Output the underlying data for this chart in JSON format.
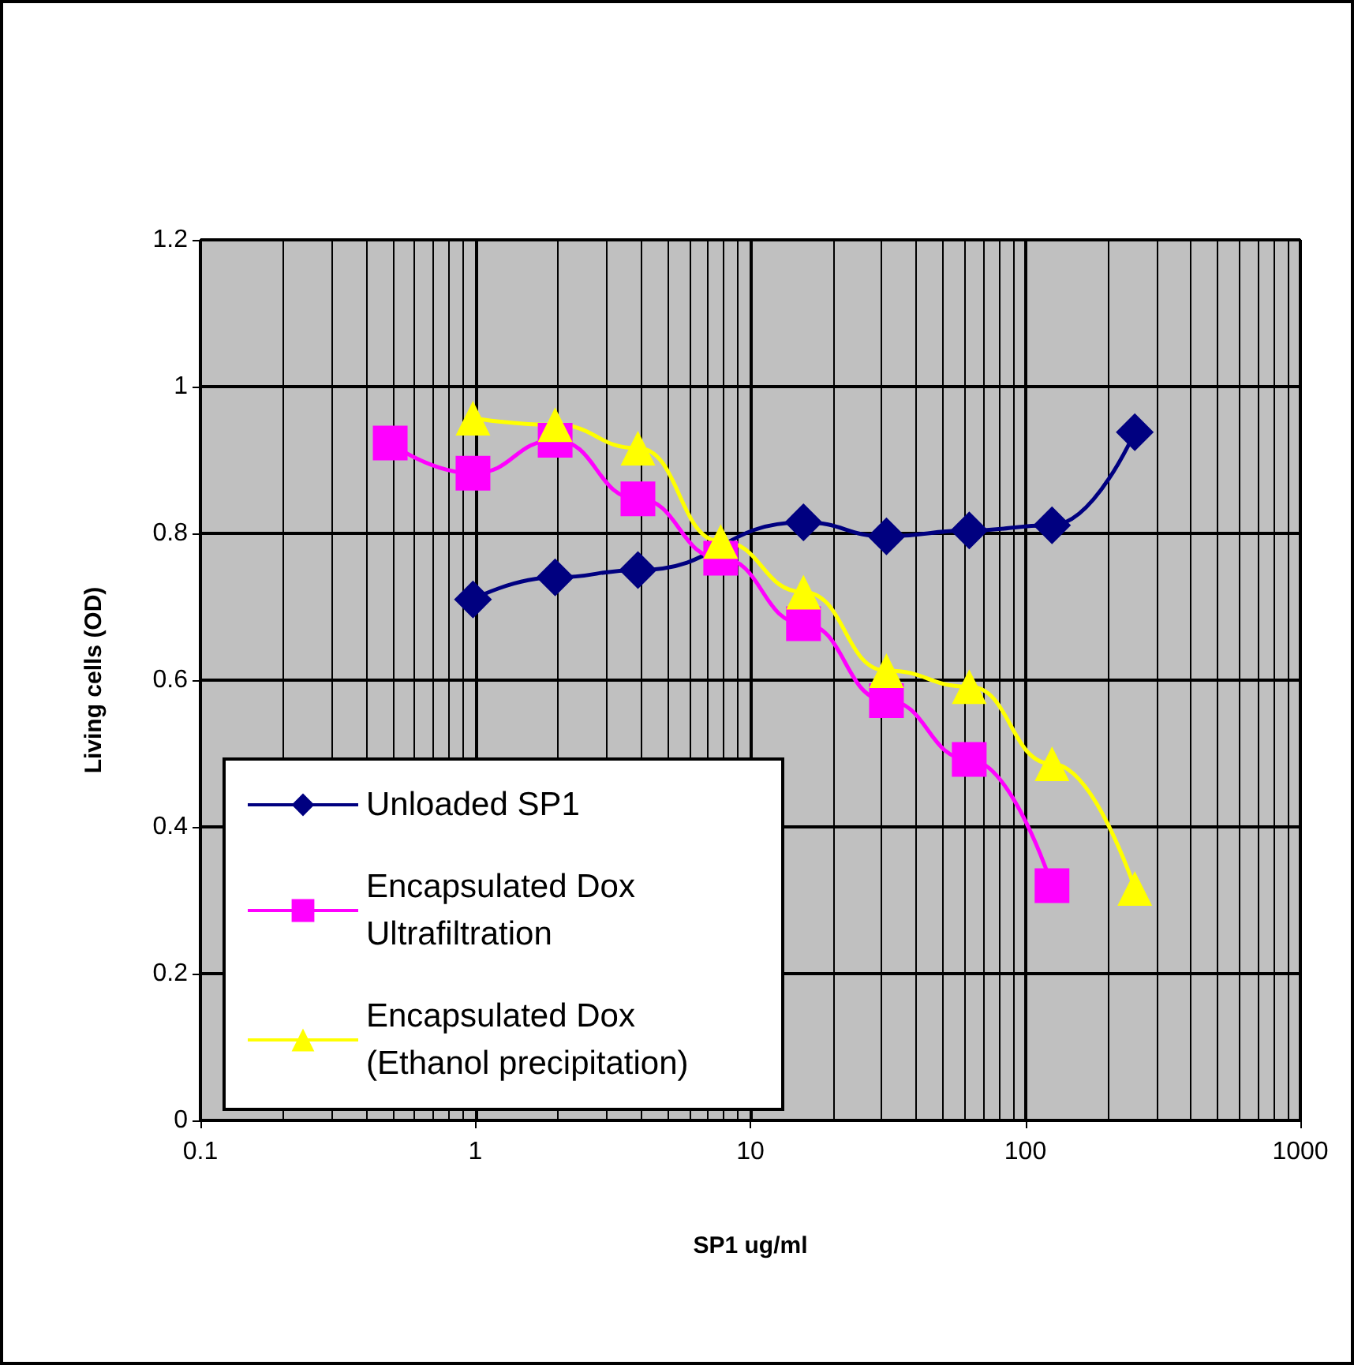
{
  "chart_data": {
    "type": "line",
    "xlabel": "SP1 ug/ml",
    "ylabel": "Living cells (OD)",
    "log": "x",
    "xlim": [
      0.1,
      1000
    ],
    "xticks": [
      0.1,
      1,
      10,
      100,
      1000
    ],
    "ylim": [
      0,
      1.2
    ],
    "yticks": [
      0,
      0.2,
      0.4,
      0.6,
      0.8,
      1,
      1.2
    ],
    "grid": true,
    "legend": "bottom left",
    "series": [
      {
        "name": "Unloaded SP1",
        "color": "#000080",
        "marker": "diamond",
        "x": [
          0.98,
          1.95,
          3.9,
          7.8,
          15.6,
          31.25,
          62.5,
          125,
          250
        ],
        "values": [
          0.71,
          0.74,
          0.75,
          null,
          0.815,
          0.796,
          0.804,
          0.811,
          0.938
        ]
      },
      {
        "name": "Encapsulated Dox Ultrafiltration",
        "color": "#ff00ff",
        "marker": "square",
        "x": [
          0.49,
          0.98,
          1.95,
          3.9,
          7.8,
          15.6,
          31.25,
          62.5,
          125
        ],
        "values": [
          0.923,
          0.882,
          0.927,
          0.847,
          0.766,
          0.677,
          0.572,
          0.492,
          0.32
        ]
      },
      {
        "name": "Encapsulated Dox (Ethanol precipitation)",
        "color": "#ffff00",
        "marker": "triangle",
        "x": [
          0.98,
          1.95,
          3.9,
          7.8,
          15.6,
          31.25,
          62.5,
          125,
          250
        ],
        "values": [
          0.957,
          0.948,
          0.916,
          0.789,
          0.72,
          0.613,
          0.591,
          0.486,
          0.316
        ]
      }
    ]
  }
}
